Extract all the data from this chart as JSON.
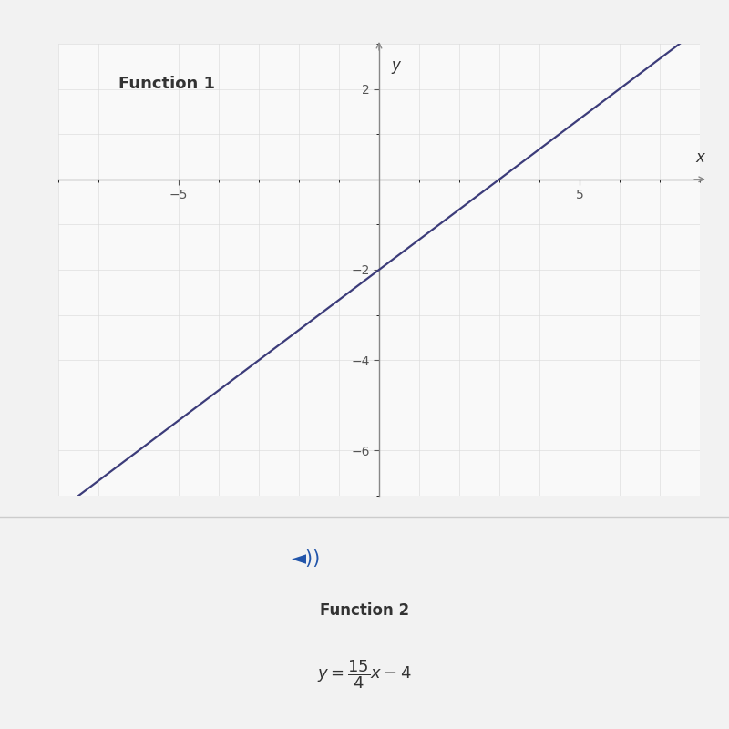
{
  "function1_slope": 0.667,
  "function1_intercept": -2,
  "x_range": [
    -8,
    8
  ],
  "x_ticks": [
    -5,
    5
  ],
  "y_ticks": [
    -6,
    -4,
    -2,
    2
  ],
  "x_label": "x",
  "y_label": "y",
  "function1_label": "Function 1",
  "function2_label": "Function 2",
  "function2_equation": "$y = \\dfrac{15}{4}x - 4$",
  "line_color": "#3c3c7a",
  "line_width": 1.6,
  "bg_color_page": "#f2f2f2",
  "bg_color_graph": "#f9f9f9",
  "bg_color_bottom": "#ebebeb",
  "axis_color": "#888888",
  "grid_color": "#d8d8d8",
  "text_color": "#333333",
  "tick_color": "#555555",
  "function1_label_fontsize": 13,
  "function2_label_fontsize": 12,
  "equation_fontsize": 13,
  "axis_label_fontsize": 12,
  "tick_fontsize": 10,
  "speaker_color": "#2255aa",
  "x_min_line": -7.5,
  "x_max_line": 7.5,
  "ylim_min": -7,
  "ylim_max": 3
}
